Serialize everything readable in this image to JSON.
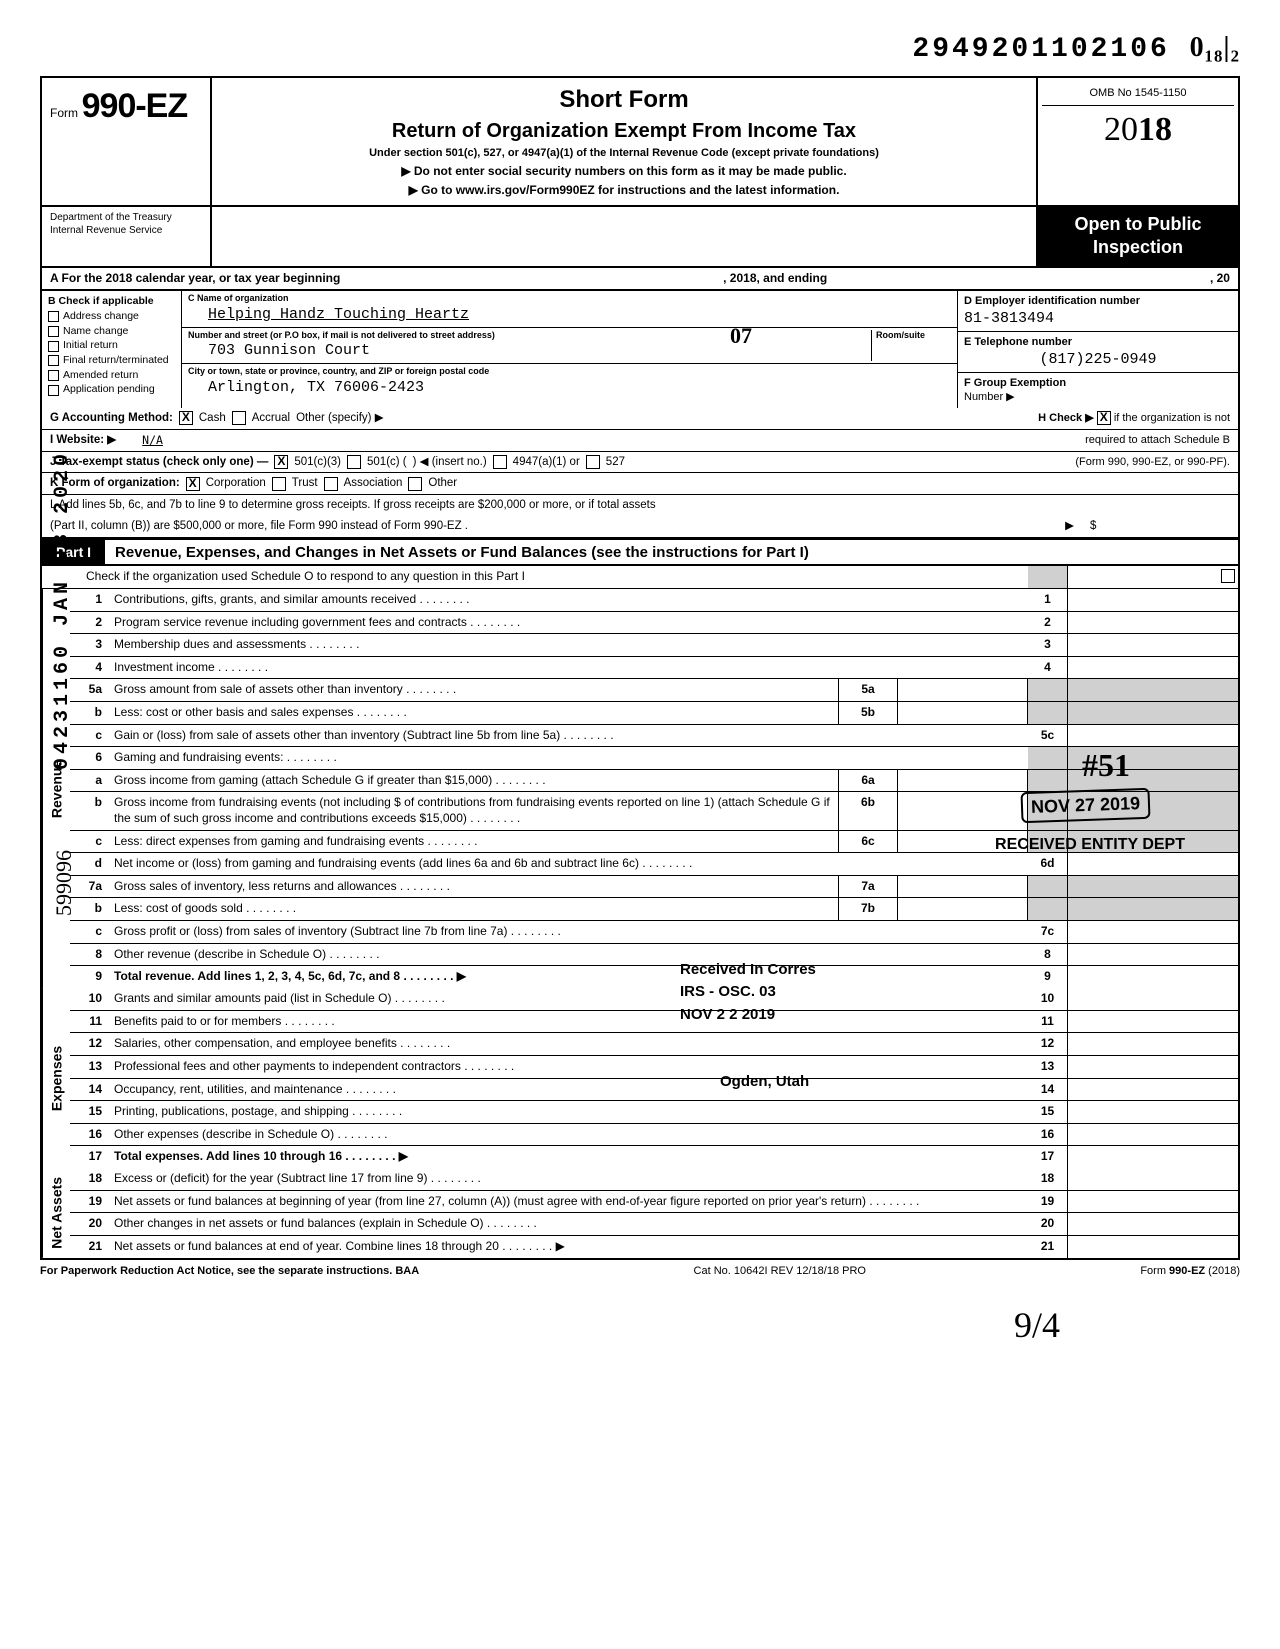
{
  "top_stamp": "2949201102106",
  "top_stamp_hand": "0₁₈|₂",
  "form": {
    "prefix": "Form",
    "number": "990-EZ",
    "title": "Short Form",
    "subtitle": "Return of Organization Exempt From Income Tax",
    "under": "Under section 501(c), 527, or 4947(a)(1) of the Internal Revenue Code (except private foundations)",
    "warn": "▶ Do not enter social security numbers on this form as it may be made public.",
    "goto": "▶ Go to www.irs.gov/Form990EZ for instructions and the latest information.",
    "omb": "OMB No  1545-1150",
    "year_prefix": "20",
    "year_bold": "18",
    "dept1": "Department of the Treasury",
    "dept2": "Internal Revenue Service",
    "open": "Open to Public",
    "inspection": "Inspection"
  },
  "lineA": {
    "left": "A  For the 2018 calendar year, or tax year beginning",
    "mid": ", 2018, and ending",
    "right": ", 20"
  },
  "colB": {
    "header": "B  Check if applicable",
    "items": [
      "Address change",
      "Name change",
      "Initial return",
      "Final return/terminated",
      "Amended return",
      "Application pending"
    ]
  },
  "colC": {
    "name_lbl": "C  Name of organization",
    "name_val": "Helping Handz Touching Heartz",
    "addr_lbl": "Number and street (or P.O  box, if mail is not delivered to street address)",
    "room_lbl": "Room/suite",
    "addr_val": "703 Gunnison Court",
    "city_lbl": "City or town, state or province, country, and ZIP or foreign postal code",
    "city_val": "Arlington, TX 76006-2423"
  },
  "colDE": {
    "d_lbl": "D Employer identification number",
    "d_val": "81-3813494",
    "e_lbl": "E Telephone number",
    "e_val": "(817)225-0949",
    "f_lbl": "F Group Exemption",
    "f_num": "Number ▶"
  },
  "rowG": "G  Accounting Method:",
  "rowG_cash": "Cash",
  "rowG_accr": "Accrual",
  "rowG_other": "Other (specify) ▶",
  "rowH1": "H  Check ▶",
  "rowH2": "if the organization is not",
  "rowH3": "required to attach Schedule B",
  "rowH4": "(Form 990, 990-EZ, or 990-PF).",
  "rowI": "I   Website: ▶",
  "rowI_val": "N/A",
  "rowJ": "J  Tax-exempt status (check only one) —",
  "rowJ_1": "501(c)(3)",
  "rowJ_2": "501(c) (",
  "rowJ_3": ") ◀ (insert no.)",
  "rowJ_4": "4947(a)(1) or",
  "rowJ_5": "527",
  "rowK": "K  Form of organization:",
  "rowK_1": "Corporation",
  "rowK_2": "Trust",
  "rowK_3": "Association",
  "rowK_4": "Other",
  "rowL1": "L  Add lines 5b, 6c, and 7b to line 9 to determine gross receipts. If gross receipts are $200,000 or more, or if total assets",
  "rowL2": "(Part II, column (B)) are $500,000 or more, file Form 990 instead of Form 990-EZ .",
  "rowL_arrow": "▶",
  "rowL_dollar": "$",
  "part1": {
    "tab": "Part I",
    "title": "Revenue, Expenses, and Changes in Net Assets or Fund Balances (see the instructions for Part I)",
    "check": "Check if the organization used Schedule O to respond to any question in this Part I"
  },
  "sections": {
    "revenue": "Revenue",
    "expenses": "Expenses",
    "netassets": "Net Assets"
  },
  "lines": [
    {
      "n": "1",
      "d": "Contributions, gifts, grants, and similar amounts received",
      "c": "1"
    },
    {
      "n": "2",
      "d": "Program service revenue including government fees and contracts",
      "c": "2"
    },
    {
      "n": "3",
      "d": "Membership dues and assessments",
      "c": "3"
    },
    {
      "n": "4",
      "d": "Investment income",
      "c": "4"
    },
    {
      "n": "5a",
      "d": "Gross amount from sale of assets other than inventory",
      "m": "5a"
    },
    {
      "n": "b",
      "d": "Less: cost or other basis and sales expenses",
      "m": "5b"
    },
    {
      "n": "c",
      "d": "Gain or (loss) from sale of assets other than inventory (Subtract line 5b from line 5a)",
      "c": "5c"
    },
    {
      "n": "6",
      "d": "Gaming and fundraising events:"
    },
    {
      "n": "a",
      "d": "Gross income from gaming (attach Schedule G if greater than $15,000)",
      "m": "6a"
    },
    {
      "n": "b",
      "d": "Gross income from fundraising events (not including  $                    of contributions from fundraising events reported on line 1) (attach Schedule G if the sum of such gross income and contributions exceeds $15,000)",
      "m": "6b"
    },
    {
      "n": "c",
      "d": "Less: direct expenses from gaming and fundraising events",
      "m": "6c"
    },
    {
      "n": "d",
      "d": "Net income or (loss) from gaming and fundraising events (add lines 6a and 6b and subtract line 6c)",
      "c": "6d"
    },
    {
      "n": "7a",
      "d": "Gross sales of inventory, less returns and allowances",
      "m": "7a"
    },
    {
      "n": "b",
      "d": "Less: cost of goods sold",
      "m": "7b"
    },
    {
      "n": "c",
      "d": "Gross profit or (loss) from sales of inventory (Subtract line 7b from line 7a)",
      "c": "7c"
    },
    {
      "n": "8",
      "d": "Other revenue (describe in Schedule O)",
      "c": "8"
    },
    {
      "n": "9",
      "d": "Total revenue. Add lines 1, 2, 3, 4, 5c, 6d, 7c, and 8",
      "c": "9",
      "arrow": true,
      "bold": true
    }
  ],
  "exp_lines": [
    {
      "n": "10",
      "d": "Grants and similar amounts paid (list in Schedule O)",
      "c": "10"
    },
    {
      "n": "11",
      "d": "Benefits paid to or for members",
      "c": "11"
    },
    {
      "n": "12",
      "d": "Salaries, other compensation, and employee benefits",
      "c": "12"
    },
    {
      "n": "13",
      "d": "Professional fees and other payments to independent contractors",
      "c": "13"
    },
    {
      "n": "14",
      "d": "Occupancy, rent, utilities, and maintenance",
      "c": "14"
    },
    {
      "n": "15",
      "d": "Printing, publications, postage, and shipping",
      "c": "15"
    },
    {
      "n": "16",
      "d": "Other expenses (describe in Schedule O)",
      "c": "16"
    },
    {
      "n": "17",
      "d": "Total expenses. Add lines 10 through 16",
      "c": "17",
      "arrow": true,
      "bold": true
    }
  ],
  "net_lines": [
    {
      "n": "18",
      "d": "Excess or (deficit) for the year (Subtract line 17 from line 9)",
      "c": "18"
    },
    {
      "n": "19",
      "d": "Net assets or fund balances at beginning of year (from line 27, column (A)) (must agree with end-of-year figure reported on prior year's return)",
      "c": "19"
    },
    {
      "n": "20",
      "d": "Other changes in net assets or fund balances (explain in Schedule O)",
      "c": "20"
    },
    {
      "n": "21",
      "d": "Net assets or fund balances at end of year. Combine lines 18 through 20",
      "c": "21",
      "arrow": true
    }
  ],
  "footer": {
    "left": "For Paperwork Reduction Act Notice, see the separate instructions. BAA",
    "mid": "Cat  No. 10642I   REV 12/18/18 PRO",
    "right": "Form 990-EZ  (2018)"
  },
  "stamps": {
    "vert1": "04231160 JAN 03 2020",
    "vert2": "599096",
    "s51": "#51",
    "nov27": "NOV 27 2019",
    "recv": "RECEIVED ENTITY DEPT",
    "corres": "Received In Corres",
    "irs": "IRS - OSC. 03",
    "nov22": "NOV  2 2 2019",
    "ogden": "Ogden, Utah",
    "hand07": "07",
    "sig": "9/4"
  }
}
